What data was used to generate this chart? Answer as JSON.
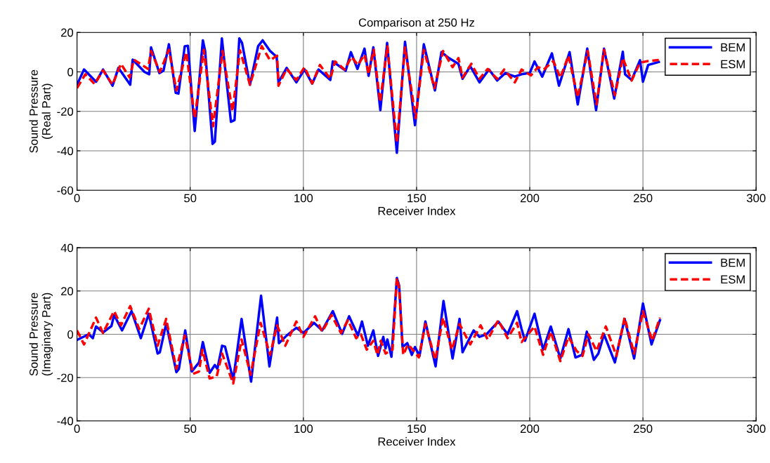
{
  "chart_data": [
    {
      "type": "line",
      "title": "Comparison at 250 Hz",
      "xlabel": "Receiver Index",
      "ylabel": "Sound Pressure\n(Real Part)",
      "xlim": [
        0,
        300
      ],
      "xticks": [
        0,
        50,
        100,
        150,
        200,
        250,
        300
      ],
      "ylim": [
        -60,
        20
      ],
      "yticks": [
        -60,
        -40,
        -20,
        0,
        20
      ],
      "grid": true,
      "legend": "top right",
      "series": [
        {
          "name": "BEM",
          "color": "#0000ff",
          "line_style": "solid",
          "x": [
            0,
            3.1,
            8.4,
            11.5,
            15.7,
            18.3,
            23.5,
            24.6,
            29.8,
            31.9,
            32.7,
            36.4,
            38.2,
            40.6,
            43.6,
            44.8,
            47.6,
            49,
            52,
            55.6,
            56.6,
            59.9,
            60.9,
            64,
            68,
            69.6,
            71.7,
            72.9,
            76.4,
            80,
            82,
            85.3,
            88.2,
            89,
            92.6,
            96.9,
            100.5,
            103.9,
            106.7,
            111.9,
            113,
            118.7,
            121,
            123.9,
            127,
            128.8,
            130.9,
            134,
            137,
            141.3,
            144.9,
            149.3,
            153.2,
            158.1,
            161,
            164.3,
            168.5,
            170.3,
            173.7,
            177.8,
            182,
            185.6,
            189.2,
            193.4,
            196.4,
            200,
            202.1,
            205.5,
            209.8,
            212.9,
            217.6,
            221.2,
            225.4,
            229.3,
            232.8,
            237.3,
            241.1,
            242.1,
            245,
            248.7,
            250,
            252.3,
            257
          ],
          "values": [
            -6.5,
            1.2,
            -5,
            1.2,
            -7,
            2,
            -6.5,
            6.2,
            0,
            -1.2,
            12.4,
            -0.6,
            0.6,
            14,
            -10.6,
            -11,
            13,
            13.2,
            -30,
            16,
            10.6,
            -36.5,
            -35.3,
            17,
            -25.3,
            -24.4,
            17,
            14.7,
            -6.5,
            13,
            16,
            10.6,
            7.6,
            -5.3,
            2,
            -5.3,
            1.2,
            -5.9,
            1.2,
            -4.1,
            5.3,
            0.6,
            10,
            1.5,
            11.8,
            -2,
            12.4,
            -19.4,
            14.7,
            -41,
            15.3,
            -27,
            14,
            -9.4,
            10,
            7,
            4.1,
            -3.5,
            2.9,
            -5.3,
            1.2,
            -4.4,
            -0.6,
            -2.4,
            -1.2,
            -0.6,
            5.3,
            -2.4,
            9.4,
            -7,
            10,
            -16.5,
            11.8,
            -19.4,
            11.8,
            -13.5,
            10.2,
            -1.2,
            -4.1,
            5.9,
            -5,
            3.5,
            5
          ]
        },
        {
          "name": "ESM",
          "color": "#ff0000",
          "line_style": "dashed",
          "x": [
            0,
            3.7,
            7.8,
            11.5,
            15.7,
            19.4,
            23.3,
            25.1,
            31.4,
            32.7,
            36.6,
            40.6,
            43.9,
            48.3,
            52,
            56,
            60.1,
            64.3,
            68.7,
            72,
            76.4,
            81.6,
            85.3,
            88.4,
            89,
            92.6,
            96.9,
            100.5,
            103.9,
            107.3,
            111.9,
            114,
            118.2,
            121.3,
            124.1,
            127,
            128.8,
            131.1,
            133.9,
            137.1,
            141.3,
            144.9,
            149.6,
            153.2,
            157.9,
            161.7,
            165.9,
            168.5,
            170.3,
            174.2,
            177.8,
            181.4,
            185.6,
            188.7,
            193.4,
            196.4,
            200.5,
            203.6,
            206.2,
            210.4,
            213.5,
            217.1,
            221.2,
            225.6,
            229.5,
            232.8,
            237.6,
            241.1,
            245,
            248.7,
            252.3,
            257
          ],
          "values": [
            -8.2,
            -1.2,
            -6.2,
            0.8,
            -6.5,
            4.1,
            -2.9,
            6.2,
            1.5,
            10.6,
            0,
            11.2,
            -9.4,
            10,
            -23.5,
            11.2,
            -27.6,
            10.6,
            -20,
            10.9,
            -6.5,
            13,
            5.9,
            8.2,
            -7,
            1.5,
            -4.1,
            2.4,
            -5.9,
            3.5,
            -3.5,
            5.3,
            1.2,
            7.6,
            3.5,
            8.8,
            -1.2,
            11.2,
            -15.3,
            13,
            -36,
            12.4,
            -23.5,
            11.2,
            -8.2,
            10.6,
            2.4,
            7,
            -2.9,
            4.1,
            -3.5,
            1.5,
            -3.5,
            1.2,
            -5.3,
            1.2,
            -1.8,
            2.4,
            1.2,
            5.5,
            -2.9,
            8.2,
            -12.9,
            10.6,
            -16.5,
            11.2,
            -11.8,
            7,
            -4.4,
            4.7,
            5.5,
            6
          ]
        }
      ]
    },
    {
      "type": "line",
      "xlabel": "Receiver Index",
      "ylabel": "Sound Pressure\n(Imaginary Part)",
      "xlim": [
        0,
        300
      ],
      "xticks": [
        0,
        50,
        100,
        150,
        200,
        250,
        300
      ],
      "ylim": [
        -40,
        40
      ],
      "yticks": [
        -40,
        -20,
        0,
        20,
        40
      ],
      "grid": true,
      "legend": "top right",
      "series": [
        {
          "name": "BEM",
          "color": "#0000ff",
          "line_style": "solid",
          "x": [
            0,
            5.2,
            7,
            8.4,
            11.5,
            15.2,
            16.4,
            19.9,
            24.1,
            28.2,
            31.7,
            35.6,
            36.6,
            39.4,
            43.9,
            45,
            47.8,
            50.7,
            53.9,
            55.6,
            58.6,
            60.9,
            62,
            64.1,
            65.4,
            69,
            72.7,
            76.9,
            81.3,
            85,
            88.4,
            89.2,
            92.6,
            96.9,
            100,
            104.7,
            108.3,
            113,
            117.1,
            120.2,
            124.1,
            125.9,
            128.5,
            130.9,
            133,
            135.3,
            136.3,
            137.1,
            138.9,
            141.3,
            142.3,
            143.8,
            145.9,
            147.9,
            149.3,
            151.3,
            153.9,
            158.4,
            161.9,
            165.9,
            169,
            170.3,
            175.2,
            177.8,
            180.9,
            186.1,
            190.2,
            194.4,
            196.4,
            197.9,
            202.1,
            205.9,
            209.3,
            213.5,
            217.1,
            220.2,
            223.1,
            225.2,
            228.3,
            230.3,
            232.8,
            237.6,
            241.9,
            246.1,
            250,
            253.8,
            257.5
          ],
          "values": [
            -2.6,
            0,
            -1.8,
            3.6,
            0.9,
            3.8,
            8.9,
            1.8,
            10.7,
            -1.8,
            9.5,
            -8.9,
            -8.3,
            5,
            -17.5,
            -16,
            1.8,
            -17.2,
            -13,
            -3.6,
            -17.8,
            -14.2,
            -16,
            -5.3,
            -5.7,
            -21,
            7.1,
            -21.9,
            17.8,
            -14.8,
            7.7,
            -4.1,
            -0.6,
            3,
            0.6,
            5.3,
            1.8,
            10.7,
            0.2,
            8.3,
            -0.6,
            5.9,
            -5.3,
            1.8,
            -10,
            -1.2,
            -6.5,
            -2.4,
            -10.4,
            26,
            22.5,
            -5.9,
            -4.1,
            -9.5,
            -5.9,
            -10,
            5.9,
            -14.8,
            15.4,
            -11.2,
            7.1,
            -8.3,
            1.8,
            -1.2,
            0,
            5.9,
            0,
            10.7,
            2.4,
            -3,
            9.5,
            -7.1,
            3.6,
            -11.2,
            2.4,
            -10.7,
            -9.5,
            1.2,
            -11.8,
            -8.9,
            0,
            -13,
            7.1,
            -11.2,
            14.2,
            -4.7,
            6.5
          ]
        },
        {
          "name": "ESM",
          "color": "#ff0000",
          "line_style": "dashed",
          "x": [
            0,
            3.1,
            8.4,
            11.5,
            16.4,
            19.4,
            23.5,
            27.5,
            31.7,
            35.6,
            39.4,
            43.9,
            47.6,
            51.3,
            53.9,
            55.4,
            58.6,
            61.7,
            64.1,
            69,
            72.7,
            76.7,
            81.1,
            85.3,
            88.4,
            92,
            96.9,
            100,
            105.2,
            108.3,
            112.4,
            116.6,
            119.7,
            123.3,
            125.4,
            128,
            130.9,
            132.7,
            134.2,
            136.3,
            139.4,
            141.3,
            142.3,
            144.1,
            146.2,
            148.8,
            151,
            153.9,
            158.3,
            161.7,
            165.6,
            169,
            173.7,
            178.3,
            181.4,
            186.1,
            190.2,
            194.4,
            196.4,
            202.1,
            205.9,
            209.3,
            213.5,
            217.1,
            220.7,
            223.3,
            225.9,
            229.5,
            233.6,
            238.3,
            241.9,
            246.1,
            250,
            254.1,
            257.5
          ],
          "values": [
            1.8,
            -4.7,
            7.7,
            0.6,
            10.7,
            4.1,
            13,
            2.4,
            11.8,
            -5.3,
            7.1,
            -16,
            -0.6,
            -18.3,
            -17.2,
            -7.1,
            -20.4,
            -19.5,
            -8.9,
            -22.7,
            -2.4,
            -18.7,
            5.3,
            -9.5,
            4.1,
            -5.3,
            5.9,
            -1.2,
            8.3,
            1.2,
            8.9,
            0.6,
            6.5,
            -1.8,
            0,
            -7.1,
            -3,
            -9.5,
            -3,
            -8.9,
            -7.1,
            26,
            21.3,
            -9.5,
            -4.7,
            -7.7,
            -10.7,
            4.7,
            -11.8,
            7.7,
            -7.1,
            4.7,
            -4.7,
            4.1,
            -2.4,
            6.5,
            -1.8,
            5.3,
            -3.6,
            3.6,
            -9.5,
            1.2,
            -12.4,
            -1.2,
            -7.7,
            -10,
            0,
            -7.7,
            3.6,
            -10,
            7.7,
            -8.9,
            10.7,
            -3,
            7.7
          ]
        }
      ]
    }
  ]
}
